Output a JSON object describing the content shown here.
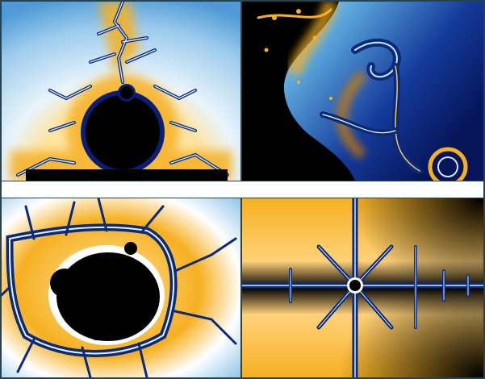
{
  "image": {
    "panels": [
      {
        "id": "top-left",
        "subject": "mandelbrot-main-cardioid-detail"
      },
      {
        "id": "top-right",
        "subject": "mandelbrot-spiral-detail"
      },
      {
        "id": "bottom-left",
        "subject": "mandelbrot-minibrot-detail"
      },
      {
        "id": "bottom-right",
        "subject": "mandelbrot-antenna-detail"
      }
    ],
    "colors": {
      "set": "#000000",
      "sky_light": "#e6f3fb",
      "sky_blue": "#5aa6dc",
      "deep_blue": "#0a1e78",
      "gold": "#f6b021",
      "orange": "#d27a00",
      "filament": "#ffffff",
      "frame": "#25424d",
      "separator": "#ffffff"
    }
  }
}
